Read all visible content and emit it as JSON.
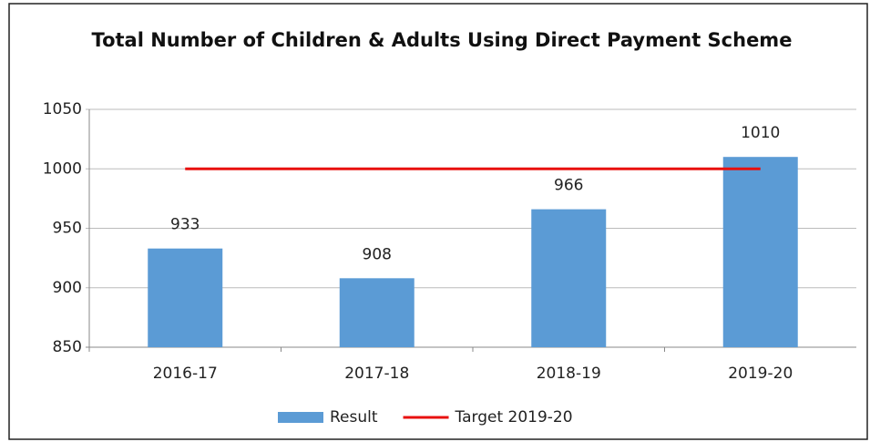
{
  "chart_data": {
    "type": "bar",
    "title": "Total Number of Children & Adults Using Direct Payment Scheme",
    "categories": [
      "2016-17",
      "2017-18",
      "2018-19",
      "2019-20"
    ],
    "series": [
      {
        "name": "Result",
        "type": "bar",
        "color": "#5b9bd5",
        "values": [
          933,
          908,
          966,
          1010
        ]
      },
      {
        "name": "Target 2019-20",
        "type": "line",
        "color": "#e8100f",
        "values": [
          1000,
          1000,
          1000,
          1000
        ]
      }
    ],
    "ylim": [
      850,
      1050
    ],
    "yticks": [
      850,
      900,
      950,
      1000,
      1050
    ],
    "grid": true,
    "legend": "bottom"
  }
}
